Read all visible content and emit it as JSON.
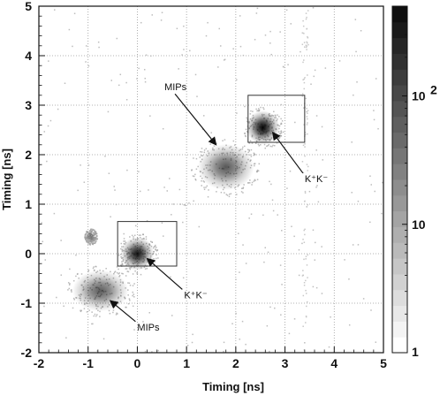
{
  "chart_data": {
    "type": "heatmap",
    "title": "",
    "xlabel": "Timing [ns]",
    "ylabel": "Timing [ns]",
    "xlim": [
      -2,
      5
    ],
    "ylim": [
      -2,
      5
    ],
    "x_ticks": [
      "-2",
      "-1",
      "0",
      "1",
      "2",
      "3",
      "4",
      "5"
    ],
    "y_ticks": [
      "-2",
      "-1",
      "0",
      "1",
      "2",
      "3",
      "4",
      "5"
    ],
    "grid": true,
    "colorbar": {
      "scale": "log",
      "range": [
        1,
        500
      ],
      "labels": [
        {
          "text": "1",
          "value": 1
        },
        {
          "text": "10",
          "value": 10
        },
        {
          "text": "10",
          "sup": "2",
          "value": 100
        }
      ]
    },
    "clusters": [
      {
        "x": 0.0,
        "y": 0.0,
        "sx": 0.13,
        "sy": 0.13,
        "peak": 220
      },
      {
        "x": 2.55,
        "y": 2.55,
        "sx": 0.13,
        "sy": 0.13,
        "peak": 300
      },
      {
        "x": -0.75,
        "y": -0.75,
        "sx": 0.22,
        "sy": 0.16,
        "peak": 40
      },
      {
        "x": 1.8,
        "y": 1.75,
        "sx": 0.22,
        "sy": 0.18,
        "peak": 45
      },
      {
        "x": -0.95,
        "y": 0.35,
        "sx": 0.04,
        "sy": 0.05,
        "peak": 8
      }
    ],
    "boxes": [
      {
        "x0": -0.4,
        "x1": 0.8,
        "y0": -0.25,
        "y1": 0.65
      },
      {
        "x0": 2.25,
        "x1": 3.4,
        "y0": 2.25,
        "y1": 3.2
      }
    ],
    "annotations": [
      {
        "text": "MIPs",
        "x": 0.0,
        "y": -1.55,
        "arrow_to": [
          -0.55,
          -0.95
        ]
      },
      {
        "text": "K⁺K⁻",
        "x": 0.95,
        "y": -0.9,
        "arrow_to": [
          0.2,
          -0.1
        ]
      },
      {
        "text": "MIPs",
        "x": 0.55,
        "y": 3.3,
        "arrow_to": [
          1.6,
          2.2
        ]
      },
      {
        "text": "K⁺K⁻",
        "x": 3.4,
        "y": 1.45,
        "arrow_to": [
          2.75,
          2.45
        ]
      }
    ]
  }
}
